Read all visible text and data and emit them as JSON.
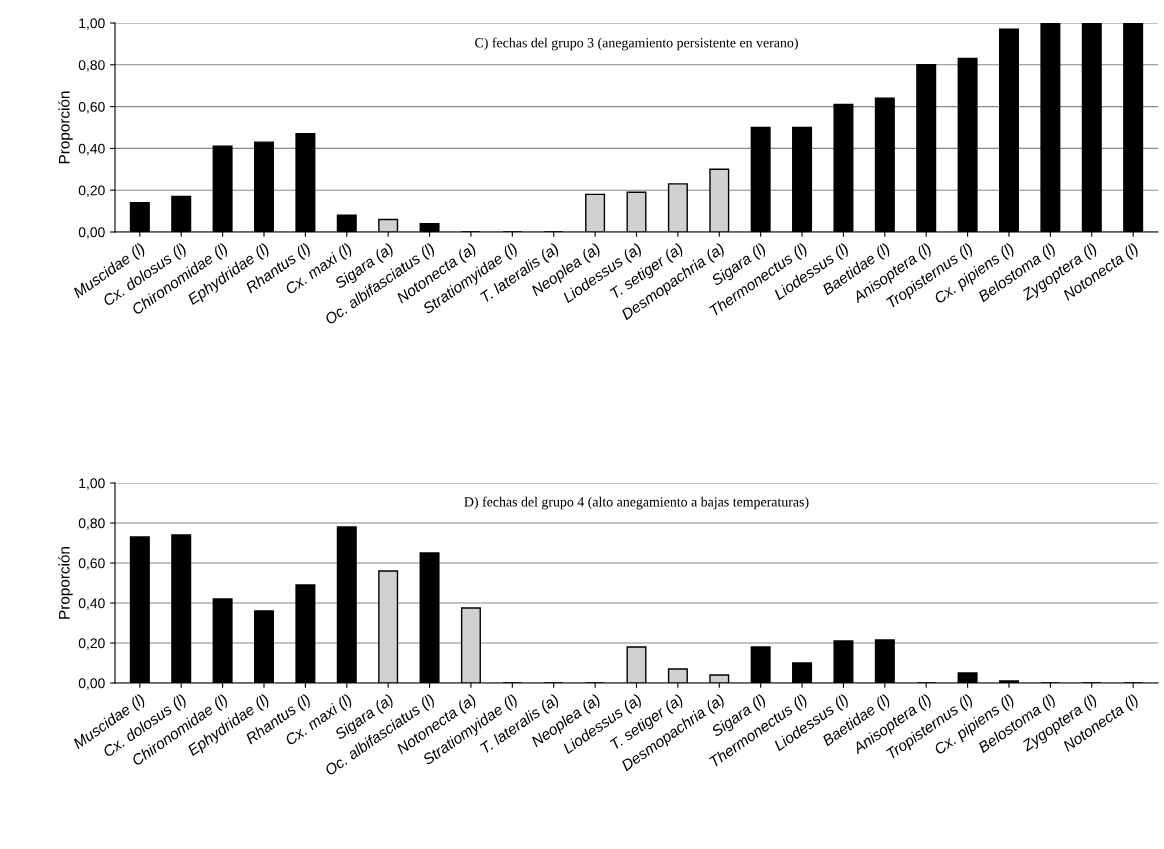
{
  "chart_data": [
    {
      "type": "bar",
      "title": "C) fechas del grupo 3 (anegamiento persistente en verano)",
      "ylabel": "Proporción",
      "categories": [
        "Muscidae (l)",
        "Cx. dolosus (l)",
        "Chironomidae (l)",
        "Ephydridae (l)",
        "Rhantus (l)",
        "Cx. maxi (l)",
        "Sigara (a)",
        "Oc. albifasciatus (l)",
        "Notonecta (a)",
        "Stratiomyidae (l)",
        "T. lateralis (a)",
        "Neoplea (a)",
        "Liodessus (a)",
        "T. setiger (a)",
        "Desmopachria (a)",
        "Sigara (l)",
        "Thermonectus (l)",
        "Liodessus (l)",
        "Baetidae (l)",
        "Anisoptera (l)",
        "Tropisternus (l)",
        "Cx. pipiens (l)",
        "Belostoma (l)",
        "Zygoptera (l)",
        "Notonecta (l)"
      ],
      "values": [
        0.14,
        0.17,
        0.41,
        0.43,
        0.47,
        0.08,
        0.06,
        0.04,
        0,
        0,
        0,
        0.18,
        0.19,
        0.23,
        0.3,
        0.5,
        0.5,
        0.61,
        0.64,
        0.8,
        0.83,
        0.97,
        1.0,
        1.0,
        1.0
      ],
      "colors": [
        "#000000",
        "#000000",
        "#000000",
        "#000000",
        "#000000",
        "#000000",
        "#d0d0d0",
        "#000000",
        "#000000",
        "#000000",
        "#000000",
        "#d0d0d0",
        "#d0d0d0",
        "#d0d0d0",
        "#d0d0d0",
        "#000000",
        "#000000",
        "#000000",
        "#000000",
        "#000000",
        "#000000",
        "#000000",
        "#000000",
        "#000000",
        "#000000"
      ],
      "ylim": [
        0,
        1
      ],
      "yticks": [
        {
          "value": 0,
          "label": "0,00"
        },
        {
          "value": 0.2,
          "label": "0,20"
        },
        {
          "value": 0.4,
          "label": "0,40"
        },
        {
          "value": 0.6,
          "label": "0,60"
        },
        {
          "value": 0.8,
          "label": "0,80"
        },
        {
          "value": 1,
          "label": "1,00"
        }
      ],
      "grid": "y",
      "legend": false
    },
    {
      "type": "bar",
      "title": "D) fechas del grupo 4 (alto anegamiento a bajas temperaturas)",
      "ylabel": "Proporción",
      "categories": [
        "Muscidae (l)",
        "Cx. dolosus (l)",
        "Chironomidae (l)",
        "Ephydridae (l)",
        "Rhantus (l)",
        "Cx. maxi (l)",
        "Sigara (a)",
        "Oc. albifasciatus (l)",
        "Notonecta (a)",
        "Stratiomyidae (l)",
        "T. lateralis (a)",
        "Neoplea (a)",
        "Liodessus (a)",
        "T. setiger (a)",
        "Desmopachria (a)",
        "Sigara (l)",
        "Thermonectus (l)",
        "Liodessus (l)",
        "Baetidae (l)",
        "Anisoptera (l)",
        "Tropisternus (l)",
        "Cx. pipiens (l)",
        "Belostoma (l)",
        "Zygoptera (l)",
        "Notonecta (l)"
      ],
      "values": [
        0.73,
        0.74,
        0.42,
        0.36,
        0.49,
        0.78,
        0.56,
        0.65,
        0.375,
        0,
        0,
        0,
        0.18,
        0.07,
        0.04,
        0.18,
        0.1,
        0.21,
        0.215,
        0,
        0.05,
        0.01,
        0,
        0,
        0
      ],
      "colors": [
        "#000000",
        "#000000",
        "#000000",
        "#000000",
        "#000000",
        "#000000",
        "#d0d0d0",
        "#000000",
        "#d0d0d0",
        "#000000",
        "#000000",
        "#000000",
        "#d0d0d0",
        "#d0d0d0",
        "#d0d0d0",
        "#000000",
        "#000000",
        "#000000",
        "#000000",
        "#000000",
        "#000000",
        "#000000",
        "#000000",
        "#000000",
        "#000000"
      ],
      "ylim": [
        0,
        1
      ],
      "yticks": [
        {
          "value": 0,
          "label": "0,00"
        },
        {
          "value": 0.2,
          "label": "0,20"
        },
        {
          "value": 0.4,
          "label": "0,40"
        },
        {
          "value": 0.6,
          "label": "0,60"
        },
        {
          "value": 0.8,
          "label": "0,80"
        },
        {
          "value": 1,
          "label": "1,00"
        }
      ],
      "grid": "y",
      "legend": false
    }
  ]
}
